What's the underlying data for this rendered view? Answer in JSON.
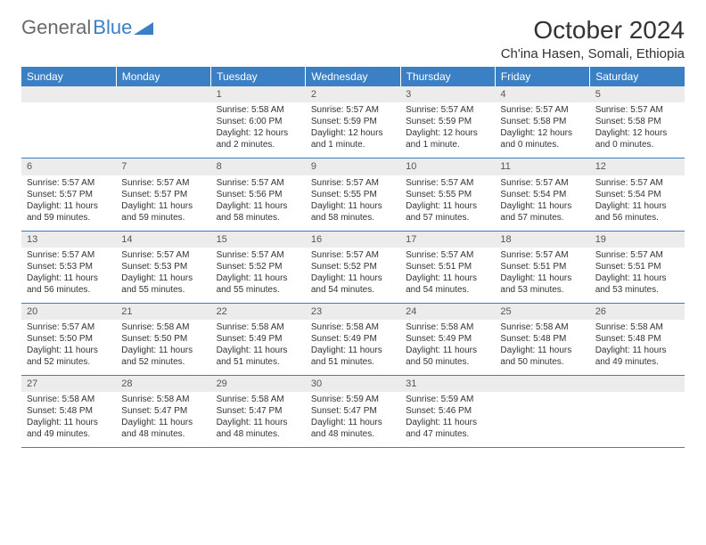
{
  "logo": {
    "text1": "General",
    "text2": "Blue"
  },
  "title": "October 2024",
  "location": "Ch'ina Hasen, Somali, Ethiopia",
  "colors": {
    "header_bg": "#3b7fc4",
    "header_text": "#ffffff",
    "daynum_bg": "#ececec",
    "row_border": "#3b7fc4",
    "body_text": "#333333",
    "logo_gray": "#6a6a6a"
  },
  "day_headers": [
    "Sunday",
    "Monday",
    "Tuesday",
    "Wednesday",
    "Thursday",
    "Friday",
    "Saturday"
  ],
  "weeks": [
    {
      "nums": [
        "",
        "",
        "1",
        "2",
        "3",
        "4",
        "5"
      ],
      "cells": [
        [],
        [],
        [
          "Sunrise: 5:58 AM",
          "Sunset: 6:00 PM",
          "Daylight: 12 hours",
          "and 2 minutes."
        ],
        [
          "Sunrise: 5:57 AM",
          "Sunset: 5:59 PM",
          "Daylight: 12 hours",
          "and 1 minute."
        ],
        [
          "Sunrise: 5:57 AM",
          "Sunset: 5:59 PM",
          "Daylight: 12 hours",
          "and 1 minute."
        ],
        [
          "Sunrise: 5:57 AM",
          "Sunset: 5:58 PM",
          "Daylight: 12 hours",
          "and 0 minutes."
        ],
        [
          "Sunrise: 5:57 AM",
          "Sunset: 5:58 PM",
          "Daylight: 12 hours",
          "and 0 minutes."
        ]
      ]
    },
    {
      "nums": [
        "6",
        "7",
        "8",
        "9",
        "10",
        "11",
        "12"
      ],
      "cells": [
        [
          "Sunrise: 5:57 AM",
          "Sunset: 5:57 PM",
          "Daylight: 11 hours",
          "and 59 minutes."
        ],
        [
          "Sunrise: 5:57 AM",
          "Sunset: 5:57 PM",
          "Daylight: 11 hours",
          "and 59 minutes."
        ],
        [
          "Sunrise: 5:57 AM",
          "Sunset: 5:56 PM",
          "Daylight: 11 hours",
          "and 58 minutes."
        ],
        [
          "Sunrise: 5:57 AM",
          "Sunset: 5:55 PM",
          "Daylight: 11 hours",
          "and 58 minutes."
        ],
        [
          "Sunrise: 5:57 AM",
          "Sunset: 5:55 PM",
          "Daylight: 11 hours",
          "and 57 minutes."
        ],
        [
          "Sunrise: 5:57 AM",
          "Sunset: 5:54 PM",
          "Daylight: 11 hours",
          "and 57 minutes."
        ],
        [
          "Sunrise: 5:57 AM",
          "Sunset: 5:54 PM",
          "Daylight: 11 hours",
          "and 56 minutes."
        ]
      ]
    },
    {
      "nums": [
        "13",
        "14",
        "15",
        "16",
        "17",
        "18",
        "19"
      ],
      "cells": [
        [
          "Sunrise: 5:57 AM",
          "Sunset: 5:53 PM",
          "Daylight: 11 hours",
          "and 56 minutes."
        ],
        [
          "Sunrise: 5:57 AM",
          "Sunset: 5:53 PM",
          "Daylight: 11 hours",
          "and 55 minutes."
        ],
        [
          "Sunrise: 5:57 AM",
          "Sunset: 5:52 PM",
          "Daylight: 11 hours",
          "and 55 minutes."
        ],
        [
          "Sunrise: 5:57 AM",
          "Sunset: 5:52 PM",
          "Daylight: 11 hours",
          "and 54 minutes."
        ],
        [
          "Sunrise: 5:57 AM",
          "Sunset: 5:51 PM",
          "Daylight: 11 hours",
          "and 54 minutes."
        ],
        [
          "Sunrise: 5:57 AM",
          "Sunset: 5:51 PM",
          "Daylight: 11 hours",
          "and 53 minutes."
        ],
        [
          "Sunrise: 5:57 AM",
          "Sunset: 5:51 PM",
          "Daylight: 11 hours",
          "and 53 minutes."
        ]
      ]
    },
    {
      "nums": [
        "20",
        "21",
        "22",
        "23",
        "24",
        "25",
        "26"
      ],
      "cells": [
        [
          "Sunrise: 5:57 AM",
          "Sunset: 5:50 PM",
          "Daylight: 11 hours",
          "and 52 minutes."
        ],
        [
          "Sunrise: 5:58 AM",
          "Sunset: 5:50 PM",
          "Daylight: 11 hours",
          "and 52 minutes."
        ],
        [
          "Sunrise: 5:58 AM",
          "Sunset: 5:49 PM",
          "Daylight: 11 hours",
          "and 51 minutes."
        ],
        [
          "Sunrise: 5:58 AM",
          "Sunset: 5:49 PM",
          "Daylight: 11 hours",
          "and 51 minutes."
        ],
        [
          "Sunrise: 5:58 AM",
          "Sunset: 5:49 PM",
          "Daylight: 11 hours",
          "and 50 minutes."
        ],
        [
          "Sunrise: 5:58 AM",
          "Sunset: 5:48 PM",
          "Daylight: 11 hours",
          "and 50 minutes."
        ],
        [
          "Sunrise: 5:58 AM",
          "Sunset: 5:48 PM",
          "Daylight: 11 hours",
          "and 49 minutes."
        ]
      ]
    },
    {
      "nums": [
        "27",
        "28",
        "29",
        "30",
        "31",
        "",
        ""
      ],
      "cells": [
        [
          "Sunrise: 5:58 AM",
          "Sunset: 5:48 PM",
          "Daylight: 11 hours",
          "and 49 minutes."
        ],
        [
          "Sunrise: 5:58 AM",
          "Sunset: 5:47 PM",
          "Daylight: 11 hours",
          "and 48 minutes."
        ],
        [
          "Sunrise: 5:58 AM",
          "Sunset: 5:47 PM",
          "Daylight: 11 hours",
          "and 48 minutes."
        ],
        [
          "Sunrise: 5:59 AM",
          "Sunset: 5:47 PM",
          "Daylight: 11 hours",
          "and 48 minutes."
        ],
        [
          "Sunrise: 5:59 AM",
          "Sunset: 5:46 PM",
          "Daylight: 11 hours",
          "and 47 minutes."
        ],
        [],
        []
      ]
    }
  ]
}
